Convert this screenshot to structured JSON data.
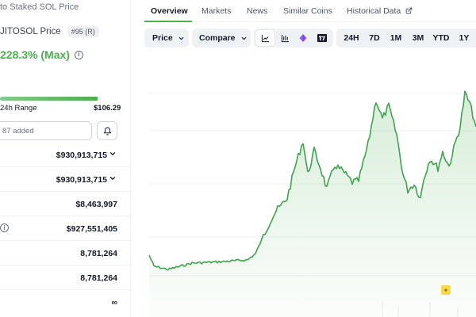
{
  "header": {
    "breadcrumb": "to Staked SOL Price",
    "coin_name": "JITOSOL Price",
    "rank": "#95 (R)",
    "change_max": "228.3% (Max)"
  },
  "range": {
    "label": "24h Range",
    "high": "$106.29",
    "fill_fraction": 0.99
  },
  "watchlist": {
    "text": "87 added"
  },
  "stats": [
    {
      "value": "$930,913,715",
      "chevron": true
    },
    {
      "value": "$930,913,715",
      "chevron": true
    },
    {
      "value": "$8,463,997",
      "chevron": false
    },
    {
      "value": "$927,551,405",
      "chevron": false,
      "info": true
    },
    {
      "value": "8,781,264",
      "chevron": false
    },
    {
      "value": "8,781,264",
      "chevron": false
    },
    {
      "value": "∞",
      "chevron": false
    }
  ],
  "tabs": [
    "Overview",
    "Markets",
    "News",
    "Similar Coins",
    "Historical Data"
  ],
  "toolbar": {
    "price_label": "Price",
    "compare_label": "Compare",
    "ranges": [
      "24H",
      "7D",
      "1M",
      "3M",
      "YTD",
      "1Y"
    ]
  },
  "icons": {
    "line_chart": "line-chart-icon",
    "bar_chart": "candlestick-icon",
    "diamond": "diamond-icon",
    "tradingview": "tradingview-icon",
    "bell": "bell-icon",
    "external": "external-link-icon"
  },
  "colors": {
    "accent": "#4caf50",
    "line": "#3fa34d"
  }
}
